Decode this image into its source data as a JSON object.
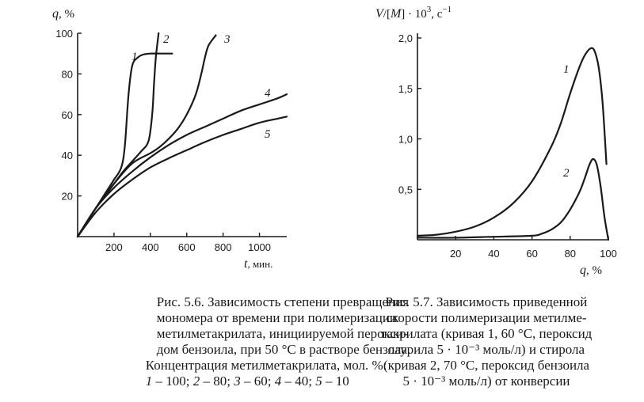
{
  "chart_data": [
    {
      "type": "line",
      "ylabel_var": "q",
      "ylabel_unit": ", %",
      "xlabel_var": "t",
      "xlabel_unit": ", мин.",
      "xlim": [
        0,
        1150
      ],
      "ylim": [
        0,
        100
      ],
      "xticks": [
        200,
        400,
        600,
        800,
        1000
      ],
      "yticks": [
        20,
        40,
        60,
        80,
        100
      ],
      "series": [
        {
          "name": "1",
          "x": [
            0,
            50,
            100,
            150,
            200,
            240,
            260,
            280,
            300,
            330,
            360,
            400,
            460,
            520
          ],
          "y": [
            0,
            7,
            14,
            21,
            28,
            34,
            45,
            70,
            84,
            88,
            89.5,
            90,
            90,
            90
          ]
        },
        {
          "name": "2",
          "x": [
            0,
            50,
            100,
            150,
            200,
            250,
            300,
            350,
            390,
            410,
            420,
            430,
            440,
            445
          ],
          "y": [
            0,
            7,
            14,
            20,
            26,
            32,
            37,
            42,
            47,
            60,
            75,
            88,
            96,
            100
          ]
        },
        {
          "name": "3",
          "x": [
            0,
            100,
            200,
            300,
            400,
            450,
            500,
            550,
            600,
            650,
            680,
            700,
            720,
            760
          ],
          "y": [
            0,
            14,
            26,
            36,
            41,
            44,
            48,
            53,
            60,
            70,
            80,
            88,
            94,
            99
          ]
        },
        {
          "name": "4",
          "x": [
            0,
            100,
            200,
            300,
            400,
            500,
            600,
            700,
            800,
            900,
            1000,
            1100,
            1150
          ],
          "y": [
            0,
            14,
            24,
            32,
            39,
            45,
            50,
            54,
            58,
            62,
            65,
            68,
            70
          ]
        },
        {
          "name": "5",
          "x": [
            0,
            100,
            200,
            300,
            400,
            500,
            600,
            700,
            800,
            900,
            1000,
            1100,
            1150
          ],
          "y": [
            0,
            12,
            21,
            28,
            34,
            38.5,
            42.5,
            46.5,
            50,
            53,
            56,
            58,
            59
          ]
        }
      ]
    },
    {
      "type": "line",
      "ylabel_var1": "V",
      "ylabel_mid": "/[",
      "ylabel_var2": "M",
      "ylabel_tail": "] · 10",
      "ylabel_exp": "3",
      "ylabel_unit": ", с",
      "ylabel_unit_exp": "−1",
      "xlabel_var": "q",
      "xlabel_unit": ", %",
      "xlim": [
        0,
        100
      ],
      "ylim": [
        0,
        2.0
      ],
      "xticks": [
        20,
        40,
        60,
        80,
        100
      ],
      "yticks": [
        0.5,
        1.0,
        1.5,
        2.0
      ],
      "ytick_labels": [
        "0,5",
        "1,0",
        "1,5",
        "2,0"
      ],
      "series": [
        {
          "name": "1",
          "x": [
            0,
            10,
            20,
            30,
            40,
            50,
            60,
            70,
            75,
            80,
            85,
            88,
            91,
            93,
            95,
            97,
            99
          ],
          "y": [
            0.04,
            0.05,
            0.08,
            0.13,
            0.22,
            0.36,
            0.58,
            0.92,
            1.15,
            1.45,
            1.72,
            1.84,
            1.9,
            1.86,
            1.7,
            1.35,
            0.75
          ]
        },
        {
          "name": "2",
          "x": [
            0,
            20,
            40,
            60,
            65,
            70,
            75,
            80,
            85,
            88,
            90,
            92,
            94,
            96,
            98,
            100
          ],
          "y": [
            0.02,
            0.02,
            0.03,
            0.04,
            0.06,
            0.1,
            0.17,
            0.3,
            0.48,
            0.63,
            0.74,
            0.8,
            0.74,
            0.52,
            0.22,
            0.0
          ]
        }
      ]
    }
  ],
  "captions": {
    "left": [
      "Рис. 5.6. Зависимость степени превращения",
      "мономера от времени при полимеризации",
      "метилметакрилата, инициируемой перокси-",
      "дом бензоила, при 50 °С в растворе бензола.",
      "Концентрация метилметакрилата, мол. %:"
    ],
    "left_last": [
      {
        "num": "1",
        "text": " – 100; "
      },
      {
        "num": "2",
        "text": " – 80; "
      },
      {
        "num": "3",
        "text": " – 60; "
      },
      {
        "num": "4",
        "text": " – 40; "
      },
      {
        "num": "5",
        "text": " – 10"
      }
    ],
    "right": [
      "Рис. 5.7. Зависимость приведенной",
      "скорости полимеризации метилме-",
      "такрилата (кривая 1, 60 °С, пероксид",
      "лаурила 5 · 10⁻³ моль/л) и стирола",
      "(кривая 2, 70 °С, пероксид бензоила",
      "5 · 10⁻³ моль/л) от конверсии"
    ]
  }
}
